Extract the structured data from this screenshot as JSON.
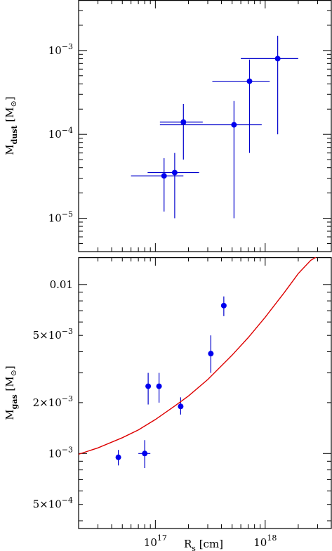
{
  "chart_data": [
    {
      "type": "scatter",
      "title": "",
      "xlabel": "",
      "ylabel": "Mdust [M⊙]",
      "ylabel_parts": {
        "main": "M",
        "sub": "dust",
        "unit_open": "[M",
        "unit_close": "]"
      },
      "x_scale": "log",
      "y_scale": "log",
      "xlim": [
        2e+16,
        4e+18
      ],
      "ylim": [
        4e-06,
        0.004
      ],
      "grid": false,
      "xticklabels": [],
      "yticks": [
        {
          "value": 1e-05,
          "base": "10",
          "exp": "−5"
        },
        {
          "value": 0.0001,
          "base": "10",
          "exp": "−4"
        },
        {
          "value": 0.001,
          "base": "10",
          "exp": "−3"
        }
      ],
      "series": [
        {
          "points": [
            {
              "x": 1.2e+17,
              "y": 3.2e-05,
              "xerr": [
                6e+16,
                1.8e+17
              ],
              "yerr": [
                1.2e-05,
                5.2e-05
              ]
            },
            {
              "x": 1.5e+17,
              "y": 3.5e-05,
              "xerr": [
                8.5e+16,
                2.5e+17
              ],
              "yerr": [
                1e-05,
                6e-05
              ]
            },
            {
              "x": 1.8e+17,
              "y": 0.00014,
              "xerr": [
                1.1e+17,
                2.7e+17
              ],
              "yerr": [
                5e-05,
                0.00023
              ]
            },
            {
              "x": 5.2e+17,
              "y": 0.00013,
              "xerr": [
                1.1e+17,
                9.3e+17
              ],
              "yerr": [
                1e-05,
                0.00025
              ]
            },
            {
              "x": 7.2e+17,
              "y": 0.00043,
              "xerr": [
                3.3e+17,
                1.1e+18
              ],
              "yerr": [
                6e-05,
                0.00078
              ]
            },
            {
              "x": 1.3e+18,
              "y": 0.0008,
              "xerr": [
                6e+17,
                2e+18
              ],
              "yerr": [
                0.0001,
                0.0015
              ]
            }
          ]
        }
      ]
    },
    {
      "type": "scatter",
      "title": "",
      "xlabel": "Rs [cm]",
      "xlabel_parts": {
        "main": "R",
        "sub": "s",
        "unit": "[cm]"
      },
      "ylabel": "Mgas [M⊙]",
      "ylabel_parts": {
        "main": "M",
        "sub": "gas",
        "unit_open": "[M",
        "unit_close": "]"
      },
      "x_scale": "log",
      "y_scale": "log",
      "xlim": [
        2e+16,
        4e+18
      ],
      "ylim": [
        0.00036,
        0.0145
      ],
      "grid": false,
      "xticks": [
        {
          "value": 1e+17,
          "base": "10",
          "exp": "17"
        },
        {
          "value": 1e+18,
          "base": "10",
          "exp": "18"
        }
      ],
      "yticks": [
        {
          "value": 0.0005,
          "label": "5×10",
          "exp": "−4"
        },
        {
          "value": 0.001,
          "label": "10",
          "exp": "−3"
        },
        {
          "value": 0.002,
          "label": "2×10",
          "exp": "−3"
        },
        {
          "value": 0.005,
          "label": "5×10",
          "exp": "−3"
        },
        {
          "value": 0.01,
          "label": "0.01",
          "exp": ""
        }
      ],
      "series": [
        {
          "points": [
            {
              "x": 4.6e+16,
              "y": 0.00095,
              "xerr": null,
              "yerr": [
                0.00085,
                0.00105
              ]
            },
            {
              "x": 8e+16,
              "y": 0.001,
              "xerr": [
                7e+16,
                9e+16
              ],
              "yerr": [
                0.00082,
                0.0012
              ]
            },
            {
              "x": 8.6e+16,
              "y": 0.0025,
              "xerr": null,
              "yerr": [
                0.00195,
                0.003
              ]
            },
            {
              "x": 1.08e+17,
              "y": 0.0025,
              "xerr": null,
              "yerr": [
                0.002,
                0.003
              ]
            },
            {
              "x": 1.7e+17,
              "y": 0.0019,
              "xerr": null,
              "yerr": [
                0.0017,
                0.00215
              ]
            },
            {
              "x": 3.2e+17,
              "y": 0.0039,
              "xerr": null,
              "yerr": [
                0.003,
                0.005
              ]
            },
            {
              "x": 4.2e+17,
              "y": 0.0075,
              "xerr": null,
              "yerr": [
                0.0065,
                0.0085
              ]
            }
          ]
        },
        {
          "line": {
            "x": [
              2e+16,
              3e+16,
              5e+16,
              7e+16,
              1e+17,
              1.5e+17,
              2e+17,
              3e+17,
              5e+17,
              7e+17,
              1e+18,
              1.5e+18,
              2e+18,
              2.6e+18,
              2.9e+18
            ],
            "y": [
              0.00099,
              0.00108,
              0.00124,
              0.00138,
              0.00159,
              0.00191,
              0.00219,
              0.00274,
              0.00382,
              0.00485,
              0.0064,
              0.009,
              0.0116,
              0.0139,
              0.0145
            ]
          }
        }
      ]
    }
  ]
}
